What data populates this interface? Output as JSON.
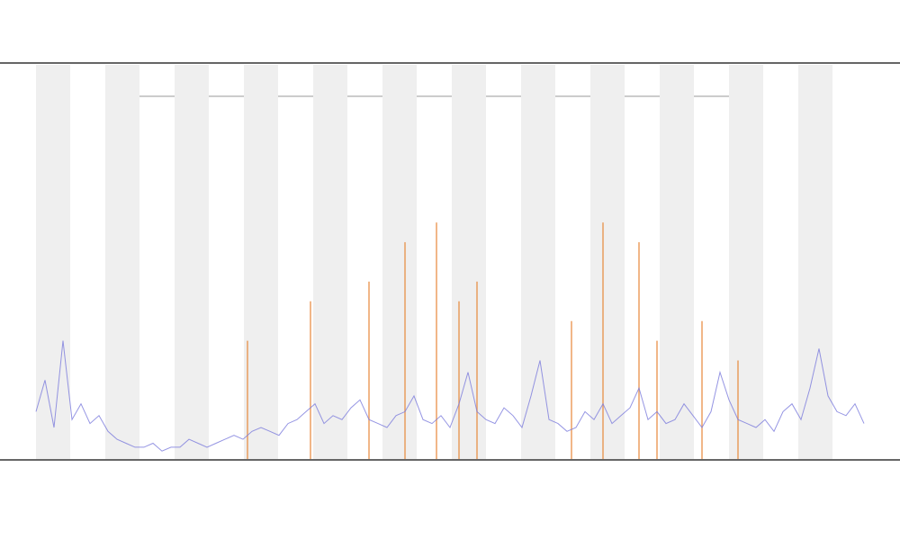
{
  "chart_data": {
    "type": "line",
    "xlim": [
      0,
      92
    ],
    "ylim": [
      0,
      100
    ],
    "series": [
      {
        "color": "#7b7bdc",
        "x": [
          0,
          1,
          2,
          3,
          4,
          5,
          6,
          7,
          8,
          9,
          10,
          11,
          12,
          13,
          14,
          15,
          16,
          17,
          18,
          19,
          20,
          21,
          22,
          23,
          24,
          25,
          26,
          27,
          28,
          29,
          30,
          31,
          32,
          33,
          34,
          35,
          36,
          37,
          38,
          39,
          40,
          41,
          42,
          43,
          44,
          45,
          46,
          47,
          48,
          49,
          50,
          51,
          52,
          53,
          54,
          55,
          56,
          57,
          58,
          59,
          60,
          61,
          62,
          63,
          64,
          65,
          66,
          67,
          68,
          69,
          70,
          71,
          72,
          73,
          74,
          75,
          76,
          77,
          78,
          79,
          80,
          81,
          82,
          83,
          84,
          85,
          86,
          87,
          88,
          89,
          90,
          91,
          92
        ],
        "values": [
          12,
          20,
          8,
          30,
          10,
          14,
          9,
          11,
          7,
          5,
          4,
          3,
          3,
          4,
          2,
          3,
          3,
          5,
          4,
          3,
          4,
          5,
          6,
          5,
          7,
          8,
          7,
          6,
          9,
          10,
          12,
          14,
          9,
          11,
          10,
          13,
          15,
          10,
          9,
          8,
          11,
          12,
          16,
          10,
          9,
          11,
          8,
          14,
          22,
          12,
          10,
          9,
          13,
          11,
          8,
          16,
          25,
          10,
          9,
          7,
          8,
          12,
          10,
          14,
          9,
          11,
          13,
          18,
          10,
          12,
          9,
          10,
          14,
          11,
          8,
          12,
          22,
          15,
          10,
          9,
          8,
          10,
          7,
          12,
          14,
          10,
          18,
          28,
          16,
          12,
          11,
          14,
          9
        ]
      },
      {
        "color": "#e8883a",
        "x": [
          23.5,
          30.5,
          37,
          41,
          44.5,
          47,
          49,
          59.5,
          63,
          67,
          69,
          74,
          78
        ],
        "values": [
          30,
          40,
          45,
          55,
          60,
          40,
          45,
          35,
          60,
          55,
          30,
          35,
          25
        ]
      }
    ]
  }
}
